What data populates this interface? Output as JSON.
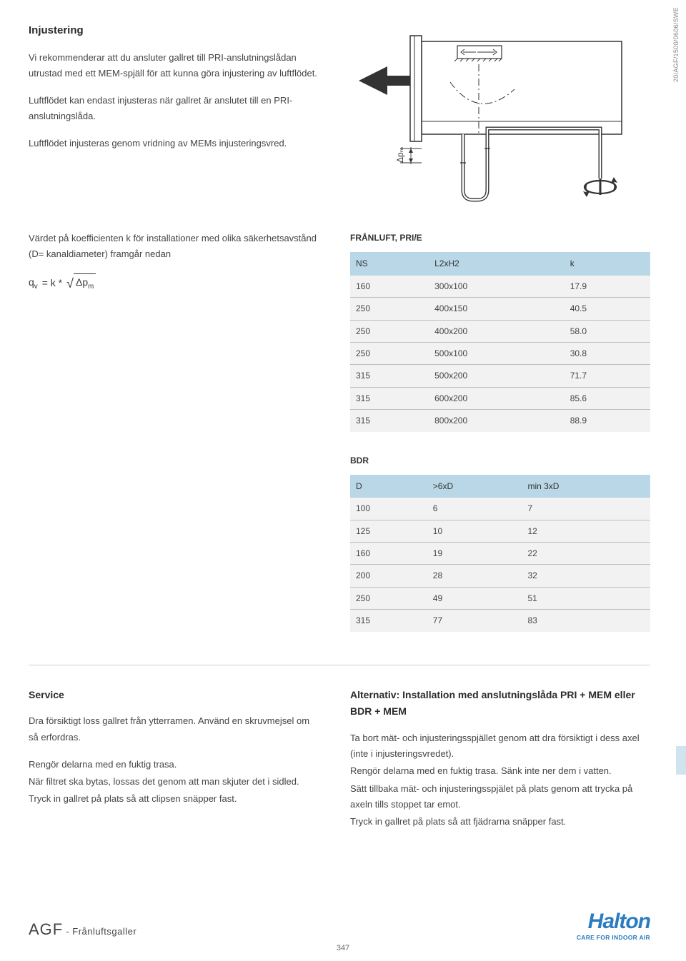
{
  "side_label": "20/AGF/1500/0606/SWE",
  "section1": {
    "title": "Injustering",
    "p1": "Vi rekommenderar att du ansluter gallret till PRI-anslutningslådan utrustad med ett MEM-spjäll för att kunna göra injustering  av luftflödet.",
    "p2": "Luftflödet kan endast injusteras när gallret är anslutet till en PRI-anslutningslåda.",
    "p3": "Luftflödet injusteras genom vridning av MEMs injusteringsvred.",
    "p4": "Värdet på koefficienten k för installationer med olika säkerhetsavstånd (D= kanaldiameter) framgår nedan",
    "formula_lhs": "q",
    "formula_sub_v": "v",
    "formula_eq": "= k *",
    "formula_delta": "Δp",
    "formula_sub_m": "m",
    "delta_pm_label": "Δpₘ"
  },
  "table1": {
    "title": "FRÅNLUFT, PRI/E",
    "headers": {
      "c1": "NS",
      "c2": "L2xH2",
      "c3": "k"
    },
    "rows": [
      {
        "c1": "160",
        "c2": "300x100",
        "c3": "17.9"
      },
      {
        "c1": "250",
        "c2": "400x150",
        "c3": "40.5"
      },
      {
        "c1": "250",
        "c2": "400x200",
        "c3": "58.0"
      },
      {
        "c1": "250",
        "c2": "500x100",
        "c3": "30.8"
      },
      {
        "c1": "315",
        "c2": "500x200",
        "c3": "71.7"
      },
      {
        "c1": "315",
        "c2": "600x200",
        "c3": "85.6"
      },
      {
        "c1": "315",
        "c2": "800x200",
        "c3": "88.9"
      }
    ],
    "header_bg": "#b9d7e6",
    "row_bg": "#f2f2f2",
    "border_color": "#bfbfbf"
  },
  "table2": {
    "title": "BDR",
    "headers": {
      "c1": "D",
      "c2": ">6xD",
      "c3": "min 3xD"
    },
    "rows": [
      {
        "c1": "100",
        "c2": "6",
        "c3": "7"
      },
      {
        "c1": "125",
        "c2": "10",
        "c3": "12"
      },
      {
        "c1": "160",
        "c2": "19",
        "c3": "22"
      },
      {
        "c1": "200",
        "c2": "28",
        "c3": "32"
      },
      {
        "c1": "250",
        "c2": "49",
        "c3": "51"
      },
      {
        "c1": "315",
        "c2": "77",
        "c3": "83"
      }
    ]
  },
  "service": {
    "title": "Service",
    "left_p1": "Dra försiktigt loss gallret från ytterramen. Använd en skruvmejsel om så erfordras.",
    "left_p2": "Rengör delarna med en fuktig trasa.",
    "left_p3": "När filtret ska bytas, lossas det genom att man skjuter det i sidled.",
    "left_p4": "Tryck in gallret på plats så att clipsen snäpper fast.",
    "right_title": "Alternativ: Installation med anslutningslåda PRI + MEM eller BDR + MEM",
    "right_p1": "Ta bort mät- och injusteringsspjället genom att dra försiktigt i dess axel (inte i injusteringsvredet).",
    "right_p2": "Rengör delarna med en fuktig trasa. Sänk inte ner dem i vatten.",
    "right_p3": "Sätt tillbaka mät- och injusteringsspjälet på plats genom att trycka på axeln tills stoppet tar emot.",
    "right_p4": "Tryck in gallret på plats så att fjädrarna snäpper fast."
  },
  "footer": {
    "product_code": "AGF",
    "product_desc": " - Frånluftsgaller",
    "logo_name": "Halton",
    "logo_tag": "CARE FOR INDOOR AIR",
    "page_num": "347"
  },
  "diagram": {
    "stroke": "#333333",
    "stroke_width": 1.4,
    "arrow_fill": "#333333"
  }
}
